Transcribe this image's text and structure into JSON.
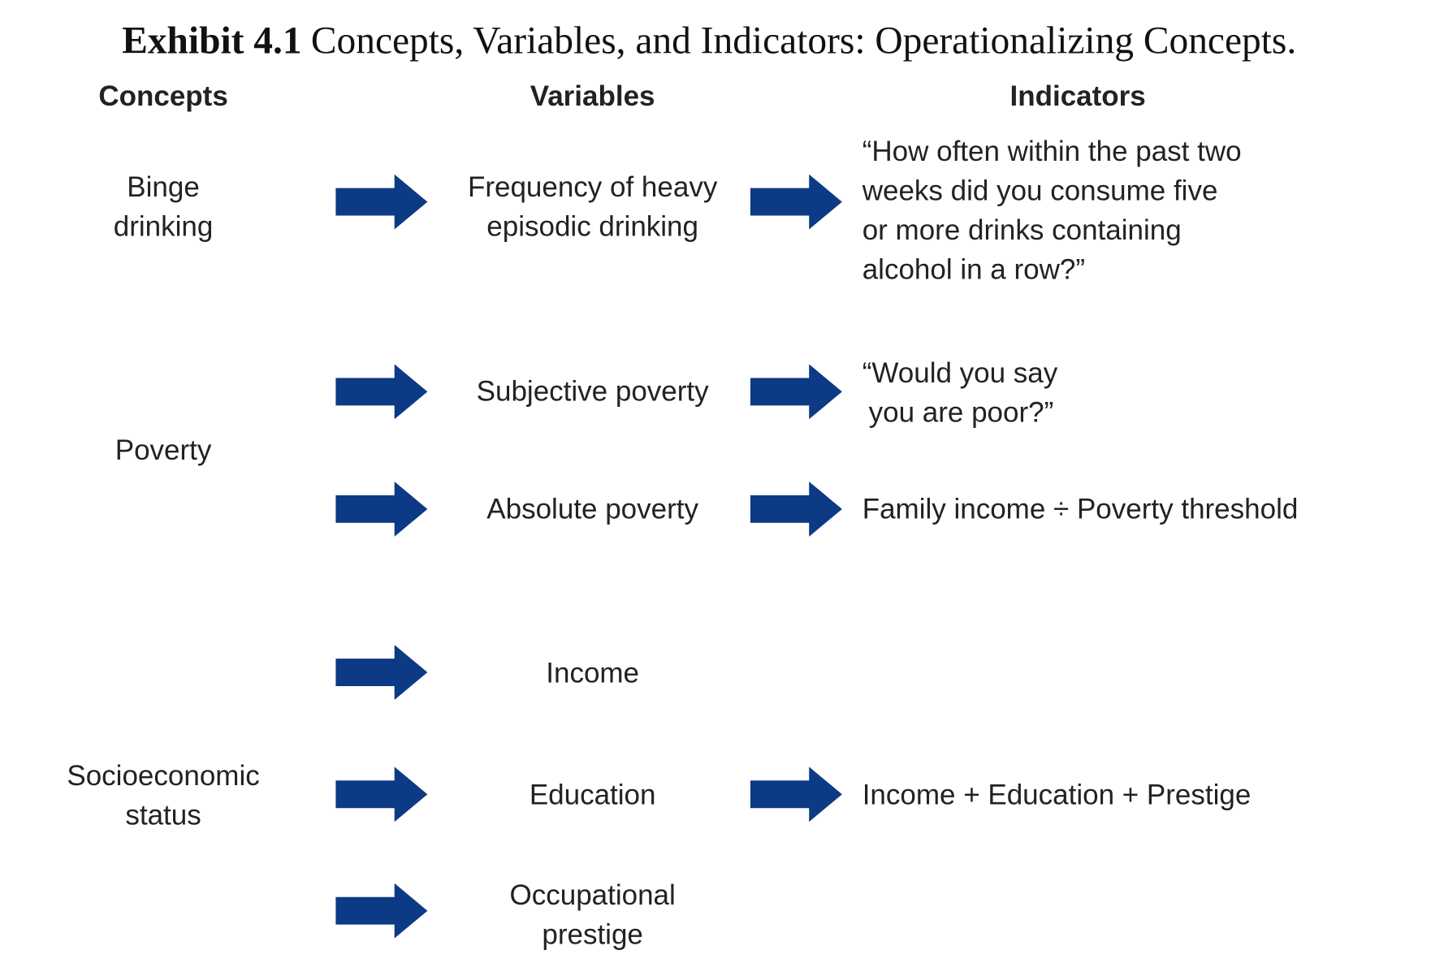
{
  "title": {
    "label": "Exhibit 4.1",
    "text": "Concepts, Variables, and Indicators: Operationalizing Concepts."
  },
  "headers": [
    "Concepts",
    "Variables",
    "Indicators"
  ],
  "concepts": [
    {
      "lines": [
        "Binge",
        "drinking"
      ]
    },
    {
      "lines": [
        "Poverty"
      ]
    },
    {
      "lines": [
        "Socioeconomic",
        "status"
      ]
    }
  ],
  "variables": [
    {
      "lines": [
        "Frequency of heavy",
        "episodic drinking"
      ]
    },
    {
      "lines": [
        "Subjective poverty"
      ]
    },
    {
      "lines": [
        "Absolute poverty"
      ]
    },
    {
      "lines": [
        "Income"
      ]
    },
    {
      "lines": [
        "Education"
      ]
    },
    {
      "lines": [
        "Occupational",
        "prestige"
      ]
    }
  ],
  "indicators": [
    {
      "lines": [
        "“How often within the past two",
        "weeks did you consume five",
        "or more drinks containing",
        "alcohol in a row?”"
      ]
    },
    {
      "lines": [
        "“Would you say",
        "you are poor?”"
      ]
    },
    {
      "lines": [
        "Family income ÷ Poverty threshold"
      ]
    },
    {
      "lines": [
        "Income + Education + Prestige"
      ]
    }
  ]
}
